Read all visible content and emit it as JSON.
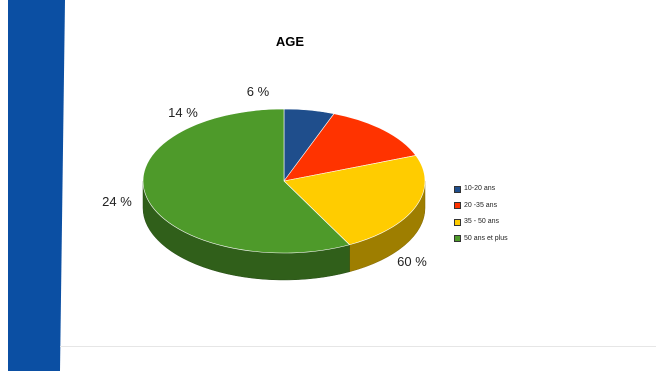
{
  "chart_data": {
    "type": "pie",
    "title": "AGE",
    "labels": [
      "10-20 ans",
      "20 -35 ans",
      "35 - 50 ans",
      "50 ans et plus"
    ],
    "values": [
      6,
      14,
      24,
      60
    ],
    "value_labels": [
      "6 %",
      "14 %",
      "24 %",
      "60 %"
    ],
    "colors": [
      "#1f4e8c",
      "#ff3300",
      "#ffcc00",
      "#4e9a2a"
    ],
    "legend_position": "right",
    "style": "3d"
  },
  "decor": {
    "band_color": "#0b4fa3"
  }
}
